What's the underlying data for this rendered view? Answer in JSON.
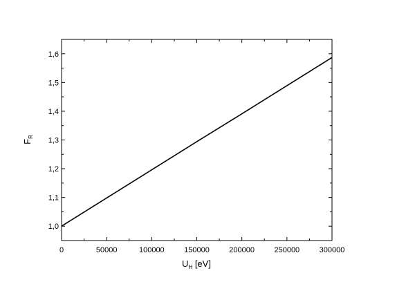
{
  "chart_data": {
    "type": "line",
    "title": "",
    "xlabel": {
      "main": "U",
      "sub": "H",
      "suffix": " [eV]"
    },
    "ylabel": {
      "main": "F",
      "sub": "R"
    },
    "xlim": [
      0,
      300000
    ],
    "ylim": [
      0.95,
      1.65
    ],
    "x_ticks": [
      0,
      50000,
      100000,
      150000,
      200000,
      250000,
      300000
    ],
    "x_tick_labels": [
      "0",
      "50000",
      "100000",
      "150000",
      "200000",
      "250000",
      "300000"
    ],
    "y_ticks": [
      1.0,
      1.1,
      1.2,
      1.3,
      1.4,
      1.5,
      1.6
    ],
    "y_tick_labels": [
      "1,0",
      "1,1",
      "1,2",
      "1,3",
      "1,4",
      "1,5",
      "1,6"
    ],
    "grid": false,
    "series": [
      {
        "color": "#000000",
        "x": [
          0,
          50000,
          100000,
          150000,
          200000,
          250000,
          300000
        ],
        "y": [
          1.0,
          1.098,
          1.196,
          1.294,
          1.391,
          1.489,
          1.587
        ]
      }
    ]
  }
}
